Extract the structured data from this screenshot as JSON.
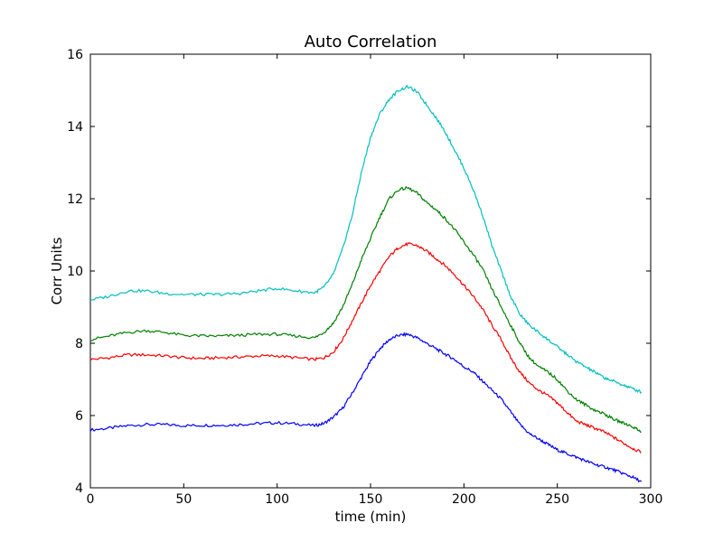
{
  "chart_data": {
    "type": "line",
    "title": "Auto Correlation",
    "xlabel": "time (min)",
    "ylabel": "Corr Units",
    "xlim": [
      0,
      300
    ],
    "ylim": [
      4,
      16
    ],
    "xticks": [
      0,
      50,
      100,
      150,
      200,
      250,
      300
    ],
    "yticks": [
      4,
      6,
      8,
      10,
      12,
      14,
      16
    ],
    "grid": false,
    "x": [
      0,
      10,
      20,
      30,
      40,
      50,
      60,
      70,
      80,
      90,
      100,
      110,
      120,
      125,
      130,
      135,
      140,
      145,
      150,
      155,
      160,
      165,
      170,
      175,
      180,
      185,
      190,
      195,
      200,
      205,
      210,
      215,
      220,
      225,
      230,
      235,
      240,
      245,
      250,
      255,
      260,
      265,
      270,
      275,
      280,
      285,
      290,
      295
    ],
    "series": [
      {
        "color": "#0000ff",
        "values": [
          5.6,
          5.65,
          5.72,
          5.75,
          5.75,
          5.72,
          5.73,
          5.73,
          5.75,
          5.78,
          5.8,
          5.77,
          5.72,
          5.78,
          5.95,
          6.2,
          6.6,
          7.05,
          7.5,
          7.85,
          8.1,
          8.22,
          8.25,
          8.15,
          8.0,
          7.85,
          7.7,
          7.55,
          7.35,
          7.2,
          6.95,
          6.7,
          6.45,
          6.1,
          5.75,
          5.5,
          5.35,
          5.2,
          5.05,
          4.95,
          4.85,
          4.75,
          4.65,
          4.58,
          4.5,
          4.4,
          4.3,
          4.17
        ]
      },
      {
        "color": "#ff0000",
        "values": [
          7.55,
          7.6,
          7.68,
          7.68,
          7.65,
          7.6,
          7.58,
          7.6,
          7.62,
          7.65,
          7.65,
          7.6,
          7.55,
          7.6,
          7.75,
          8.1,
          8.6,
          9.1,
          9.6,
          10.0,
          10.4,
          10.65,
          10.75,
          10.7,
          10.55,
          10.35,
          10.15,
          9.9,
          9.6,
          9.3,
          8.95,
          8.5,
          8.1,
          7.6,
          7.2,
          6.9,
          6.7,
          6.55,
          6.35,
          6.1,
          5.85,
          5.75,
          5.65,
          5.55,
          5.4,
          5.25,
          5.1,
          4.98
        ]
      },
      {
        "color": "#008000",
        "values": [
          8.1,
          8.2,
          8.3,
          8.35,
          8.3,
          8.22,
          8.2,
          8.2,
          8.22,
          8.25,
          8.25,
          8.2,
          8.15,
          8.3,
          8.55,
          9.0,
          9.6,
          10.3,
          10.9,
          11.5,
          12.0,
          12.25,
          12.3,
          12.15,
          11.9,
          11.7,
          11.45,
          11.15,
          10.8,
          10.45,
          10.05,
          9.5,
          9.0,
          8.5,
          8.0,
          7.6,
          7.35,
          7.2,
          7.0,
          6.7,
          6.45,
          6.3,
          6.15,
          6.05,
          5.9,
          5.8,
          5.7,
          5.55
        ]
      },
      {
        "color": "#00bfbf",
        "values": [
          9.2,
          9.3,
          9.45,
          9.45,
          9.38,
          9.35,
          9.35,
          9.35,
          9.38,
          9.45,
          9.52,
          9.45,
          9.4,
          9.55,
          9.9,
          10.6,
          11.5,
          12.7,
          13.7,
          14.35,
          14.75,
          15.0,
          15.1,
          14.95,
          14.6,
          14.25,
          13.85,
          13.35,
          12.85,
          12.25,
          11.55,
          10.7,
          10.0,
          9.3,
          8.8,
          8.5,
          8.3,
          8.1,
          7.9,
          7.7,
          7.5,
          7.35,
          7.2,
          7.05,
          6.95,
          6.85,
          6.75,
          6.65
        ]
      }
    ]
  }
}
